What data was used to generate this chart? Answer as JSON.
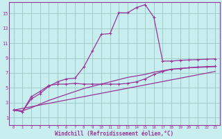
{
  "xlabel": "Windchill (Refroidissement éolien,°C)",
  "bg_color": "#c8eef0",
  "grid_color": "#a0ccc8",
  "line_color": "#993399",
  "xlim": [
    -0.5,
    23.5
  ],
  "ylim": [
    0,
    16.5
  ],
  "xticks": [
    0,
    1,
    2,
    3,
    4,
    5,
    6,
    7,
    8,
    9,
    10,
    11,
    12,
    13,
    14,
    15,
    16,
    17,
    18,
    19,
    20,
    21,
    22,
    23
  ],
  "yticks": [
    1,
    3,
    5,
    7,
    9,
    11,
    13,
    15
  ],
  "curve1_x": [
    0,
    1,
    2,
    3,
    4,
    5,
    6,
    7,
    8,
    9,
    10,
    11,
    12,
    13,
    14,
    15,
    16,
    17,
    18,
    19,
    20,
    21,
    22,
    23
  ],
  "curve1_y": [
    2.0,
    1.8,
    3.5,
    4.2,
    5.2,
    5.8,
    6.2,
    6.3,
    7.8,
    10.0,
    12.2,
    12.3,
    15.1,
    15.1,
    15.8,
    16.2,
    14.5,
    8.6,
    8.6,
    8.7,
    8.75,
    8.8,
    8.85,
    8.9
  ],
  "curve2_x": [
    0,
    1,
    2,
    3,
    4,
    5,
    6,
    7,
    8,
    9,
    10,
    11,
    12,
    13,
    14,
    15,
    16,
    17,
    18,
    19,
    20,
    21,
    22,
    23
  ],
  "curve2_y": [
    2.0,
    1.8,
    3.8,
    4.5,
    5.3,
    5.5,
    5.5,
    5.6,
    5.5,
    5.5,
    5.5,
    5.5,
    5.5,
    5.6,
    5.8,
    6.2,
    6.8,
    7.2,
    7.5,
    7.6,
    7.7,
    7.8,
    7.85,
    7.9
  ],
  "curve3_x": [
    0,
    1,
    2,
    3,
    4,
    5,
    6,
    7,
    8,
    9,
    10,
    11,
    12,
    13,
    14,
    15,
    16,
    17,
    18,
    19,
    20,
    21,
    22,
    23
  ],
  "curve3_y": [
    2.0,
    1.9,
    2.3,
    2.8,
    3.3,
    3.7,
    4.1,
    4.5,
    4.9,
    5.2,
    5.5,
    5.8,
    6.1,
    6.4,
    6.6,
    6.8,
    7.1,
    7.3,
    7.5,
    7.6,
    7.7,
    7.75,
    7.8,
    7.85
  ],
  "curve4_x": [
    0,
    23
  ],
  "curve4_y": [
    2.0,
    7.2
  ]
}
